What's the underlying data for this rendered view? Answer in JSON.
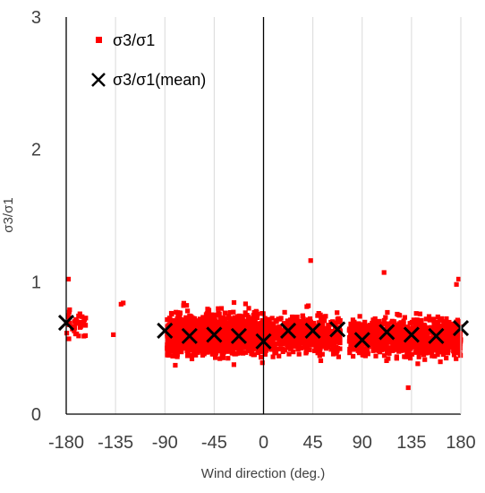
{
  "chart_data": {
    "type": "scatter",
    "xlabel": "Wind direction (deg.)",
    "ylabel": "σ3/σ1",
    "xlim": [
      -180,
      180
    ],
    "ylim": [
      0,
      3
    ],
    "xticks": [
      -180,
      -135,
      -90,
      -45,
      0,
      45,
      90,
      135,
      180
    ],
    "yticks": [
      0,
      1,
      2,
      3
    ],
    "grid": "vertical",
    "legend_position": "top-left",
    "zero_line": true,
    "series": [
      {
        "name": "σ3/σ1",
        "marker": "square",
        "color": "#ff0000",
        "clusters": [
          {
            "x_range": [
              -180,
              -162
            ],
            "y_mean": 0.68,
            "y_spread": 0.09,
            "count": 40
          },
          {
            "x_range": [
              -88,
              0
            ],
            "y_mean": 0.6,
            "y_spread": 0.14,
            "count": 1500
          },
          {
            "x_range": [
              0,
              70
            ],
            "y_mean": 0.6,
            "y_spread": 0.12,
            "count": 650
          },
          {
            "x_range": [
              78,
              180
            ],
            "y_mean": 0.58,
            "y_spread": 0.12,
            "count": 1100
          }
        ],
        "points": [
          [
            -178,
            1.02
          ],
          [
            -130,
            0.83
          ],
          [
            -128,
            0.84
          ],
          [
            -137,
            0.6
          ],
          [
            43,
            1.16
          ],
          [
            110,
            1.07
          ],
          [
            132,
            0.2
          ],
          [
            178,
            1.02
          ],
          [
            176,
            0.98
          ]
        ]
      },
      {
        "name": "σ3/σ1(mean)",
        "marker": "x",
        "color": "#000000",
        "x": [
          -180,
          -90,
          -67.5,
          -45,
          -22.5,
          0,
          22.5,
          45,
          67.5,
          90,
          112.5,
          135,
          157.5,
          180
        ],
        "y": [
          0.69,
          0.63,
          0.59,
          0.6,
          0.59,
          0.55,
          0.63,
          0.63,
          0.64,
          0.56,
          0.62,
          0.6,
          0.59,
          0.65
        ]
      }
    ]
  },
  "colors": {
    "scatter": "#ff0000",
    "mean": "#000000",
    "grid": "#d9d9d9",
    "axis": "#000000"
  }
}
